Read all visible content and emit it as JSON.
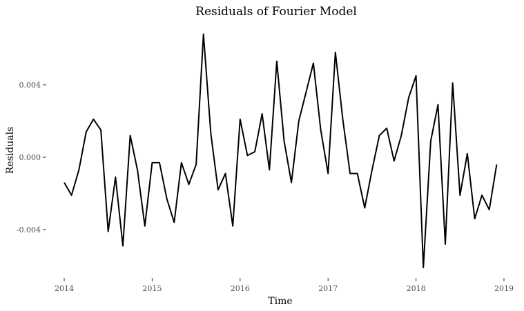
{
  "chart_data": {
    "type": "line",
    "title": "Residuals of Fourier Model",
    "xlabel": "Time",
    "ylabel": "Residuals",
    "xlim": [
      2014,
      2019
    ],
    "ylim": [
      -0.0062,
      0.0068
    ],
    "grid": false,
    "x_ticks": [
      2014,
      2015,
      2016,
      2017,
      2018,
      2019
    ],
    "y_ticks": [
      -0.004,
      0.0,
      0.004
    ],
    "y_tick_labels": [
      "-0.004",
      "0.000",
      "0.004"
    ],
    "line_color": "#000000",
    "x": [
      2014.0,
      2014.083,
      2014.167,
      2014.25,
      2014.333,
      2014.417,
      2014.5,
      2014.583,
      2014.667,
      2014.75,
      2014.833,
      2014.917,
      2015.0,
      2015.083,
      2015.167,
      2015.25,
      2015.333,
      2015.417,
      2015.5,
      2015.583,
      2015.667,
      2015.75,
      2015.833,
      2015.917,
      2016.0,
      2016.083,
      2016.167,
      2016.25,
      2016.333,
      2016.417,
      2016.5,
      2016.583,
      2016.667,
      2016.75,
      2016.833,
      2016.917,
      2017.0,
      2017.083,
      2017.167,
      2017.25,
      2017.333,
      2017.417,
      2017.5,
      2017.583,
      2017.667,
      2017.75,
      2017.833,
      2017.917,
      2018.0,
      2018.083,
      2018.167,
      2018.25,
      2018.333,
      2018.417,
      2018.5,
      2018.583,
      2018.667,
      2018.75,
      2018.833,
      2018.917
    ],
    "y": [
      -0.0014,
      -0.0021,
      -0.0007,
      0.0014,
      0.0021,
      0.0015,
      -0.0041,
      -0.0011,
      -0.0049,
      0.0012,
      -0.0007,
      -0.0038,
      -0.0003,
      -0.0003,
      -0.0023,
      -0.0036,
      -0.0003,
      -0.0015,
      -0.0004,
      0.0068,
      0.0013,
      -0.0018,
      -0.0009,
      -0.0038,
      0.0021,
      0.0001,
      0.0003,
      0.0024,
      -0.0007,
      0.0053,
      0.0009,
      -0.0014,
      0.002,
      0.0036,
      0.0052,
      0.0015,
      -0.0009,
      0.0058,
      0.0021,
      -0.0009,
      -0.0009,
      -0.0028,
      -0.0007,
      0.0012,
      0.0016,
      -0.0002,
      0.0012,
      0.0033,
      0.0045,
      -0.0061,
      0.0009,
      0.0029,
      -0.0048,
      0.0041,
      -0.0021,
      0.0002,
      -0.0034,
      -0.0021,
      -0.0029,
      -0.0004
    ]
  }
}
